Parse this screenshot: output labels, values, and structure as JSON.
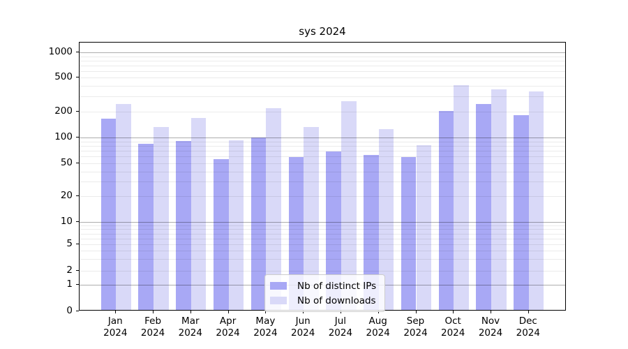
{
  "title": "sys 2024",
  "chart_data": {
    "type": "bar",
    "categories": [
      "Jan 2024",
      "Feb 2024",
      "Mar 2024",
      "Apr 2024",
      "May 2024",
      "Jun 2024",
      "Jul 2024",
      "Aug 2024",
      "Sep 2024",
      "Oct 2024",
      "Nov 2024",
      "Dec 2024"
    ],
    "series": [
      {
        "name": "Nb of distinct IPs",
        "color": "#a8a8f5",
        "values": [
          160,
          81,
          88,
          54,
          96,
          57,
          66,
          60,
          57,
          197,
          236,
          175
        ]
      },
      {
        "name": "Nb of downloads",
        "color": "#d9d9f8",
        "values": [
          235,
          127,
          162,
          90,
          210,
          127,
          253,
          121,
          79,
          390,
          350,
          330
        ]
      }
    ],
    "title": "sys 2024",
    "xlabel": "",
    "ylabel": "",
    "yscale": "symlog",
    "yticks": [
      0,
      1,
      2,
      5,
      10,
      20,
      50,
      100,
      200,
      500,
      1000
    ],
    "ylim": [
      0,
      1300
    ],
    "grid": "on",
    "legend_position": "lower center"
  },
  "legend": {
    "items": [
      {
        "label": "Nb of distinct IPs",
        "color": "#a8a8f5"
      },
      {
        "label": "Nb of downloads",
        "color": "#d9d9f8"
      }
    ]
  }
}
